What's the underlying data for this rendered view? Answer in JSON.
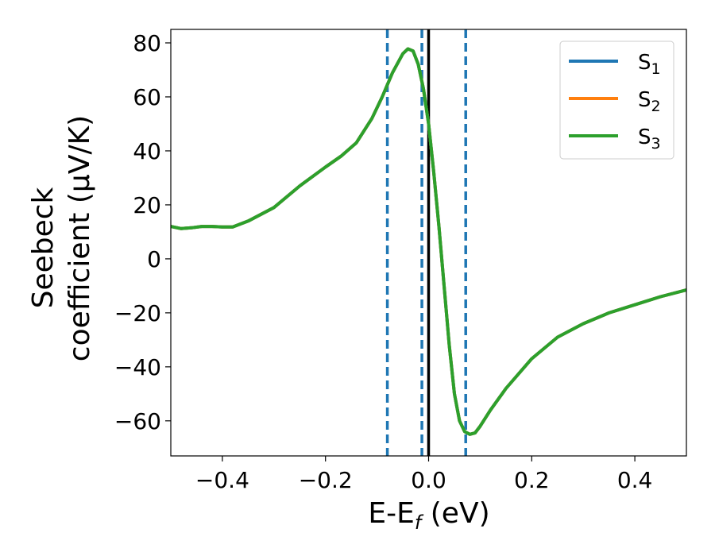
{
  "chart_data": {
    "type": "line",
    "xlabel_main": "E-E",
    "xlabel_sub": "f",
    "xlabel_unit": " (eV)",
    "ylabel_line1": "Seebeck",
    "ylabel_line2": "coefficient  (μV/K)",
    "xlim": [
      -0.5,
      0.5
    ],
    "ylim": [
      -73,
      85
    ],
    "xticks": [
      -0.4,
      -0.2,
      0.0,
      0.2,
      0.4
    ],
    "xtick_labels": [
      "−0.4",
      "−0.2",
      "0.0",
      "0.2",
      "0.4"
    ],
    "yticks": [
      -60,
      -40,
      -20,
      0,
      20,
      40,
      60,
      80
    ],
    "ytick_labels": [
      "−60",
      "−40",
      "−20",
      "0",
      "20",
      "40",
      "60",
      "80"
    ],
    "grid": false,
    "legend_position": "top-right",
    "series": [
      {
        "name_base": "S",
        "name_sub": "1",
        "color": "#1f77b4"
      },
      {
        "name_base": "S",
        "name_sub": "2",
        "color": "#ff7f0e"
      },
      {
        "name_base": "S",
        "name_sub": "3",
        "color": "#2ca02c"
      }
    ],
    "x": [
      -0.5,
      -0.48,
      -0.46,
      -0.44,
      -0.42,
      -0.4,
      -0.38,
      -0.35,
      -0.3,
      -0.25,
      -0.2,
      -0.17,
      -0.14,
      -0.11,
      -0.09,
      -0.07,
      -0.05,
      -0.04,
      -0.03,
      -0.02,
      -0.01,
      0.0,
      0.01,
      0.02,
      0.03,
      0.04,
      0.05,
      0.06,
      0.07,
      0.08,
      0.09,
      0.1,
      0.12,
      0.15,
      0.2,
      0.25,
      0.3,
      0.35,
      0.4,
      0.45,
      0.5
    ],
    "y": [
      12,
      11.2,
      11.5,
      12,
      12,
      11.8,
      11.8,
      14,
      19,
      27,
      34,
      38,
      43,
      52,
      60,
      69,
      76,
      77.8,
      77,
      72,
      63,
      50,
      32,
      12,
      -10,
      -32,
      -50,
      -60,
      -64,
      -65,
      -64.5,
      -62,
      -56,
      -48,
      -37,
      -29,
      -24,
      -20,
      -17,
      -14,
      -11.5
    ],
    "vlines": [
      {
        "x": -0.08,
        "style": "dashed",
        "color": "#1f77b4"
      },
      {
        "x": -0.013,
        "style": "dashed",
        "color": "#1f77b4"
      },
      {
        "x": 0.072,
        "style": "dashed",
        "color": "#1f77b4"
      },
      {
        "x": 0.0,
        "style": "solid",
        "color": "#000000"
      }
    ]
  }
}
